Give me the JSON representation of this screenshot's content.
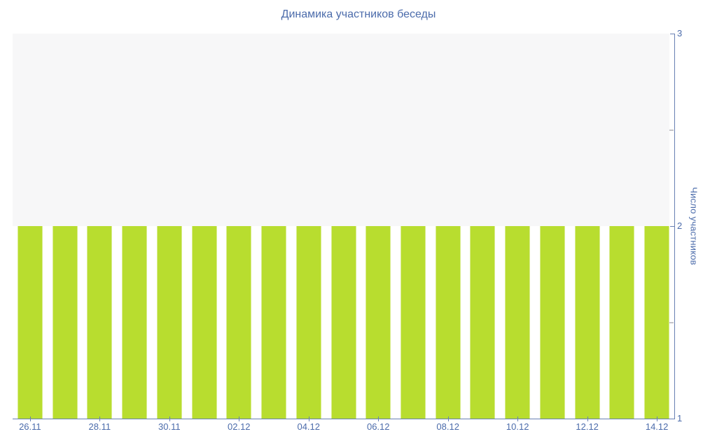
{
  "title": "Динамика участников беседы",
  "chart_data": {
    "type": "bar",
    "title": "Динамика участников беседы",
    "xlabel": "",
    "ylabel": "Число участников",
    "ylim": [
      1,
      3
    ],
    "yticks": [
      1,
      2,
      3
    ],
    "minor_yticks": [
      1.5,
      2.5
    ],
    "num_bars": 19,
    "values": [
      2,
      2,
      2,
      2,
      2,
      2,
      2,
      2,
      2,
      2,
      2,
      2,
      2,
      2,
      2,
      2,
      2,
      2,
      2
    ],
    "x_tick_labels": [
      "26.11",
      "28.11",
      "30.11",
      "02.12",
      "04.12",
      "06.12",
      "08.12",
      "10.12",
      "12.12",
      "14.12"
    ],
    "x_label_every": 2,
    "legend": null,
    "grid": false,
    "y_axis_position": "right",
    "band_above_bars": {
      "from": 2,
      "to": 3,
      "color": "#f7f7f8"
    },
    "colors": {
      "bar": "#b8dd2f",
      "bar_edge": "#d9ec8e",
      "axis_line": "#6880b3",
      "text": "#4c6cab",
      "minor_tick": "#c4c4c9",
      "background": "#ffffff"
    }
  }
}
